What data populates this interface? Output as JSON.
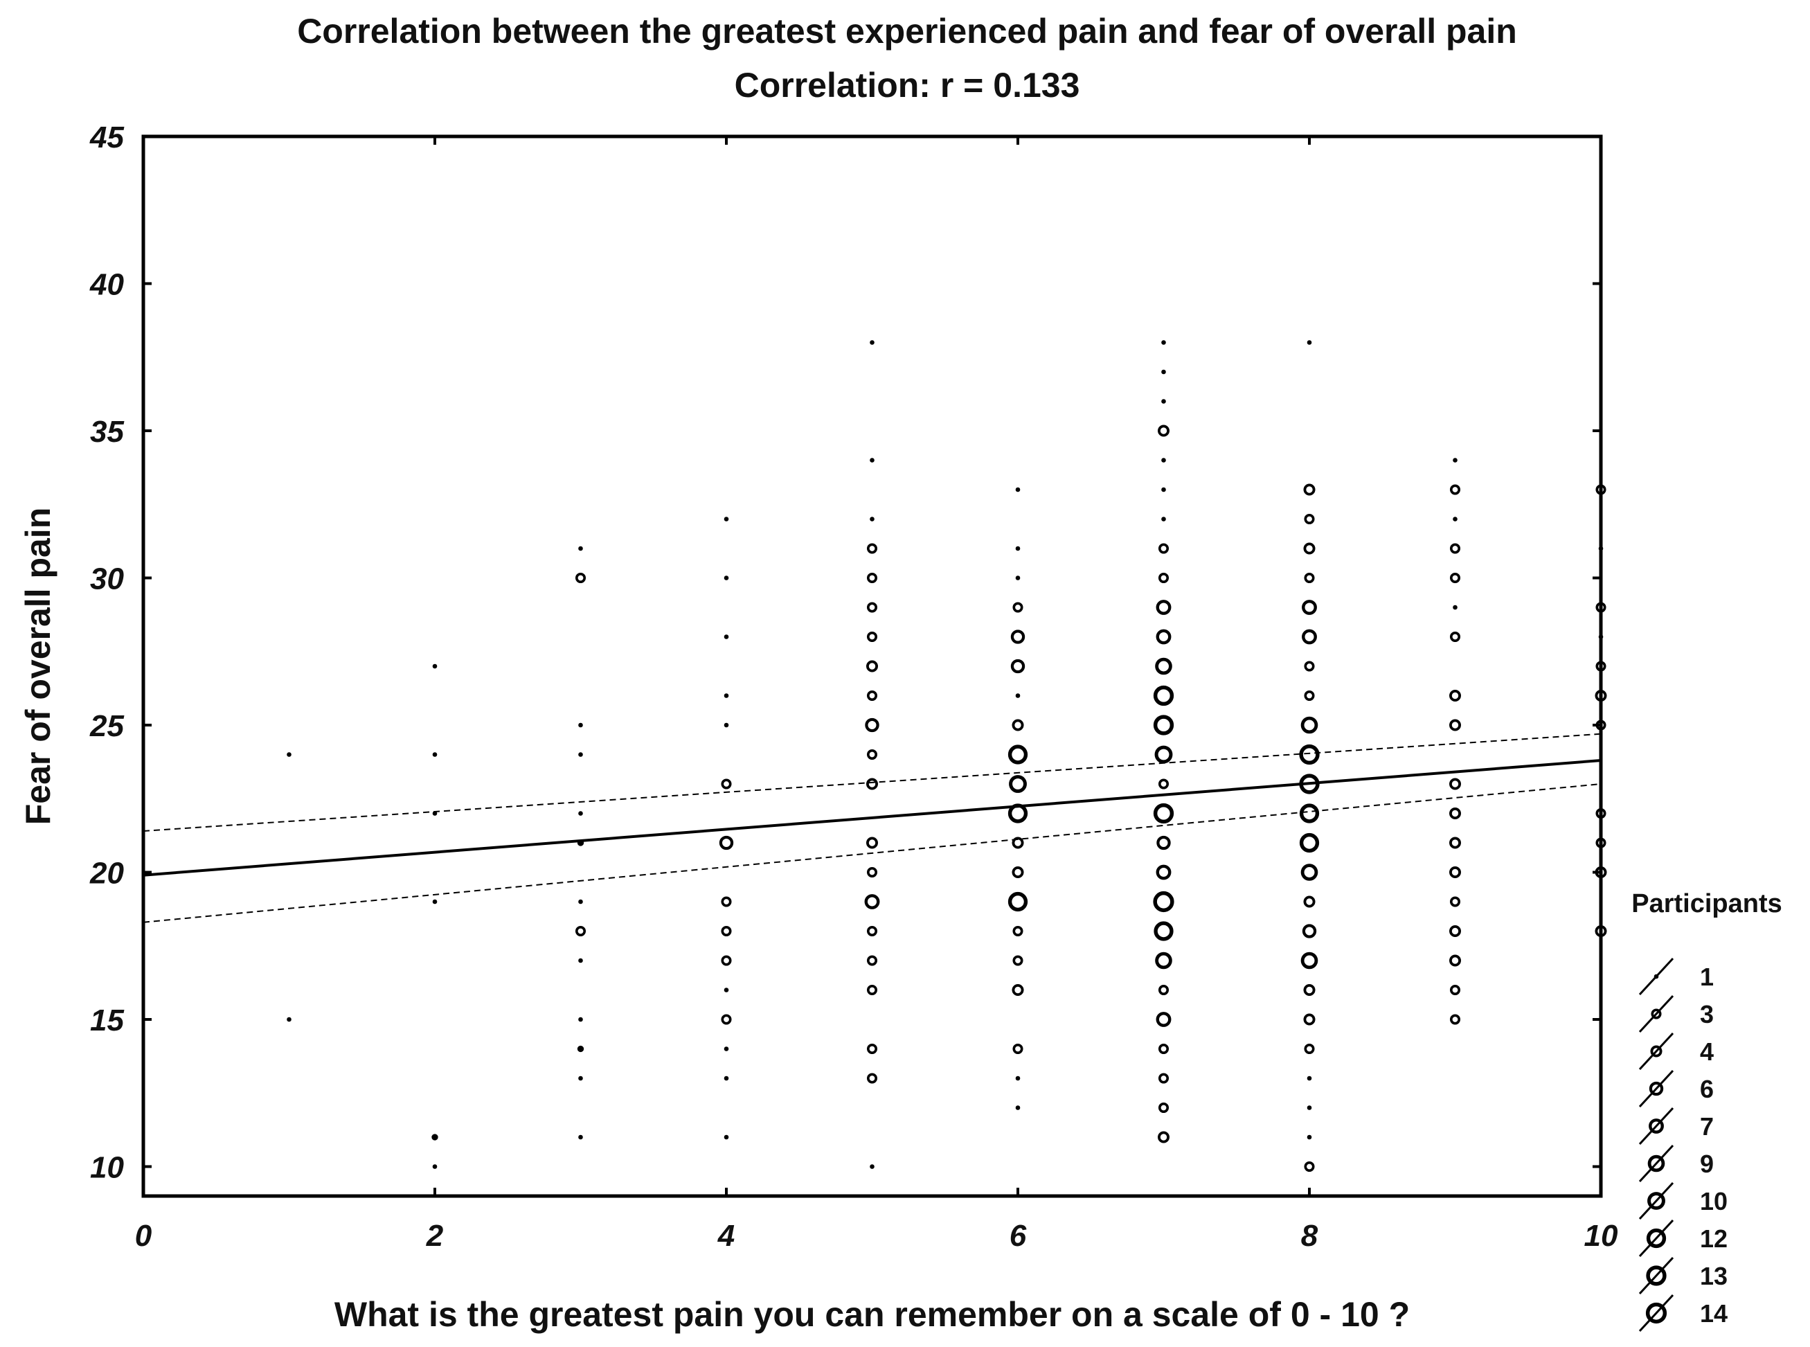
{
  "chart_data": {
    "type": "scatter",
    "title": "Correlation between the greatest experienced pain and fear of overall pain",
    "subtitle": "Correlation: r =  0.133",
    "xlabel": "What is the greatest pain you can remember on a scale of 0 - 10 ?",
    "ylabel": "Fear of overall pain",
    "xlim": [
      0,
      10
    ],
    "ylim": [
      9,
      45
    ],
    "x_ticks": [
      0,
      2,
      4,
      6,
      8,
      10
    ],
    "y_ticks": [
      10,
      15,
      20,
      25,
      30,
      35,
      40,
      45
    ],
    "x_tick_labels": [
      "0",
      "2",
      "4",
      "6",
      "8",
      "10"
    ],
    "y_tick_labels": [
      "10",
      "15",
      "20",
      "25",
      "30",
      "35",
      "40",
      "45"
    ],
    "grid": false,
    "legend": {
      "title": "Participants",
      "placement": "right",
      "entries": [
        1,
        3,
        4,
        6,
        7,
        9,
        10,
        12,
        13,
        14
      ],
      "labels": [
        "1",
        "3",
        "4",
        "6",
        "7",
        "9",
        "10",
        "12",
        "13",
        "14"
      ]
    },
    "regression": {
      "intercept": 19.9,
      "slope": 0.39
    },
    "confidence_band": {
      "upper": [
        [
          0,
          21.4
        ],
        [
          10,
          24.7
        ]
      ],
      "lower": [
        [
          0,
          18.3
        ],
        [
          10,
          23.0
        ]
      ]
    },
    "points": [
      {
        "x": 1,
        "y": 24,
        "n": 1
      },
      {
        "x": 1,
        "y": 15,
        "n": 1
      },
      {
        "x": 2,
        "y": 27,
        "n": 1
      },
      {
        "x": 2,
        "y": 24,
        "n": 1
      },
      {
        "x": 2,
        "y": 22,
        "n": 1
      },
      {
        "x": 2,
        "y": 19,
        "n": 1
      },
      {
        "x": 2,
        "y": 11,
        "n": 2
      },
      {
        "x": 2,
        "y": 10,
        "n": 1
      },
      {
        "x": 3,
        "y": 31,
        "n": 1
      },
      {
        "x": 3,
        "y": 30,
        "n": 3
      },
      {
        "x": 3,
        "y": 25,
        "n": 1
      },
      {
        "x": 3,
        "y": 24,
        "n": 1
      },
      {
        "x": 3,
        "y": 22,
        "n": 1
      },
      {
        "x": 3,
        "y": 21,
        "n": 2
      },
      {
        "x": 3,
        "y": 19,
        "n": 1
      },
      {
        "x": 3,
        "y": 18,
        "n": 3
      },
      {
        "x": 3,
        "y": 17,
        "n": 1
      },
      {
        "x": 3,
        "y": 15,
        "n": 1
      },
      {
        "x": 3,
        "y": 14,
        "n": 2
      },
      {
        "x": 3,
        "y": 13,
        "n": 1
      },
      {
        "x": 3,
        "y": 11,
        "n": 1
      },
      {
        "x": 4,
        "y": 32,
        "n": 1
      },
      {
        "x": 4,
        "y": 30,
        "n": 1
      },
      {
        "x": 4,
        "y": 28,
        "n": 1
      },
      {
        "x": 4,
        "y": 26,
        "n": 1
      },
      {
        "x": 4,
        "y": 25,
        "n": 1
      },
      {
        "x": 4,
        "y": 23,
        "n": 3
      },
      {
        "x": 4,
        "y": 21,
        "n": 6
      },
      {
        "x": 4,
        "y": 19,
        "n": 3
      },
      {
        "x": 4,
        "y": 18,
        "n": 3
      },
      {
        "x": 4,
        "y": 17,
        "n": 3
      },
      {
        "x": 4,
        "y": 16,
        "n": 1
      },
      {
        "x": 4,
        "y": 15,
        "n": 3
      },
      {
        "x": 4,
        "y": 14,
        "n": 1
      },
      {
        "x": 4,
        "y": 13,
        "n": 1
      },
      {
        "x": 4,
        "y": 11,
        "n": 1
      },
      {
        "x": 5,
        "y": 38,
        "n": 1
      },
      {
        "x": 5,
        "y": 34,
        "n": 1
      },
      {
        "x": 5,
        "y": 32,
        "n": 1
      },
      {
        "x": 5,
        "y": 31,
        "n": 3
      },
      {
        "x": 5,
        "y": 30,
        "n": 3
      },
      {
        "x": 5,
        "y": 29,
        "n": 3
      },
      {
        "x": 5,
        "y": 28,
        "n": 3
      },
      {
        "x": 5,
        "y": 27,
        "n": 4
      },
      {
        "x": 5,
        "y": 26,
        "n": 3
      },
      {
        "x": 5,
        "y": 25,
        "n": 6
      },
      {
        "x": 5,
        "y": 24,
        "n": 3
      },
      {
        "x": 5,
        "y": 23,
        "n": 4
      },
      {
        "x": 5,
        "y": 21,
        "n": 4
      },
      {
        "x": 5,
        "y": 20,
        "n": 3
      },
      {
        "x": 5,
        "y": 19,
        "n": 7
      },
      {
        "x": 5,
        "y": 18,
        "n": 3
      },
      {
        "x": 5,
        "y": 17,
        "n": 3
      },
      {
        "x": 5,
        "y": 16,
        "n": 3
      },
      {
        "x": 5,
        "y": 14,
        "n": 3
      },
      {
        "x": 5,
        "y": 13,
        "n": 3
      },
      {
        "x": 5,
        "y": 10,
        "n": 1
      },
      {
        "x": 6,
        "y": 33,
        "n": 1
      },
      {
        "x": 6,
        "y": 31,
        "n": 1
      },
      {
        "x": 6,
        "y": 30,
        "n": 1
      },
      {
        "x": 6,
        "y": 29,
        "n": 3
      },
      {
        "x": 6,
        "y": 28,
        "n": 6
      },
      {
        "x": 6,
        "y": 27,
        "n": 6
      },
      {
        "x": 6,
        "y": 26,
        "n": 1
      },
      {
        "x": 6,
        "y": 25,
        "n": 4
      },
      {
        "x": 6,
        "y": 24,
        "n": 12
      },
      {
        "x": 6,
        "y": 23,
        "n": 10
      },
      {
        "x": 6,
        "y": 22,
        "n": 12
      },
      {
        "x": 6,
        "y": 21,
        "n": 4
      },
      {
        "x": 6,
        "y": 20,
        "n": 4
      },
      {
        "x": 6,
        "y": 19,
        "n": 12
      },
      {
        "x": 6,
        "y": 18,
        "n": 3
      },
      {
        "x": 6,
        "y": 17,
        "n": 3
      },
      {
        "x": 6,
        "y": 16,
        "n": 4
      },
      {
        "x": 6,
        "y": 14,
        "n": 3
      },
      {
        "x": 6,
        "y": 13,
        "n": 1
      },
      {
        "x": 6,
        "y": 12,
        "n": 1
      },
      {
        "x": 7,
        "y": 38,
        "n": 1
      },
      {
        "x": 7,
        "y": 37,
        "n": 1
      },
      {
        "x": 7,
        "y": 36,
        "n": 1
      },
      {
        "x": 7,
        "y": 35,
        "n": 4
      },
      {
        "x": 7,
        "y": 34,
        "n": 1
      },
      {
        "x": 7,
        "y": 33,
        "n": 1
      },
      {
        "x": 7,
        "y": 32,
        "n": 1
      },
      {
        "x": 7,
        "y": 31,
        "n": 3
      },
      {
        "x": 7,
        "y": 30,
        "n": 3
      },
      {
        "x": 7,
        "y": 29,
        "n": 7
      },
      {
        "x": 7,
        "y": 28,
        "n": 7
      },
      {
        "x": 7,
        "y": 27,
        "n": 9
      },
      {
        "x": 7,
        "y": 26,
        "n": 13
      },
      {
        "x": 7,
        "y": 25,
        "n": 13
      },
      {
        "x": 7,
        "y": 24,
        "n": 10
      },
      {
        "x": 7,
        "y": 23,
        "n": 3
      },
      {
        "x": 7,
        "y": 22,
        "n": 13
      },
      {
        "x": 7,
        "y": 21,
        "n": 6
      },
      {
        "x": 7,
        "y": 20,
        "n": 7
      },
      {
        "x": 7,
        "y": 19,
        "n": 14
      },
      {
        "x": 7,
        "y": 18,
        "n": 12
      },
      {
        "x": 7,
        "y": 17,
        "n": 9
      },
      {
        "x": 7,
        "y": 16,
        "n": 3
      },
      {
        "x": 7,
        "y": 15,
        "n": 7
      },
      {
        "x": 7,
        "y": 14,
        "n": 3
      },
      {
        "x": 7,
        "y": 13,
        "n": 3
      },
      {
        "x": 7,
        "y": 12,
        "n": 3
      },
      {
        "x": 7,
        "y": 11,
        "n": 4
      },
      {
        "x": 8,
        "y": 38,
        "n": 1
      },
      {
        "x": 8,
        "y": 33,
        "n": 4
      },
      {
        "x": 8,
        "y": 32,
        "n": 3
      },
      {
        "x": 8,
        "y": 31,
        "n": 4
      },
      {
        "x": 8,
        "y": 30,
        "n": 3
      },
      {
        "x": 8,
        "y": 29,
        "n": 7
      },
      {
        "x": 8,
        "y": 28,
        "n": 7
      },
      {
        "x": 8,
        "y": 27,
        "n": 3
      },
      {
        "x": 8,
        "y": 26,
        "n": 3
      },
      {
        "x": 8,
        "y": 25,
        "n": 9
      },
      {
        "x": 8,
        "y": 24,
        "n": 13
      },
      {
        "x": 8,
        "y": 23,
        "n": 13
      },
      {
        "x": 8,
        "y": 22,
        "n": 12
      },
      {
        "x": 8,
        "y": 21,
        "n": 12
      },
      {
        "x": 8,
        "y": 20,
        "n": 9
      },
      {
        "x": 8,
        "y": 19,
        "n": 4
      },
      {
        "x": 8,
        "y": 18,
        "n": 6
      },
      {
        "x": 8,
        "y": 17,
        "n": 9
      },
      {
        "x": 8,
        "y": 16,
        "n": 4
      },
      {
        "x": 8,
        "y": 15,
        "n": 4
      },
      {
        "x": 8,
        "y": 14,
        "n": 3
      },
      {
        "x": 8,
        "y": 13,
        "n": 1
      },
      {
        "x": 8,
        "y": 12,
        "n": 1
      },
      {
        "x": 8,
        "y": 11,
        "n": 1
      },
      {
        "x": 8,
        "y": 10,
        "n": 3
      },
      {
        "x": 9,
        "y": 34,
        "n": 1
      },
      {
        "x": 9,
        "y": 33,
        "n": 3
      },
      {
        "x": 9,
        "y": 32,
        "n": 1
      },
      {
        "x": 9,
        "y": 31,
        "n": 3
      },
      {
        "x": 9,
        "y": 30,
        "n": 3
      },
      {
        "x": 9,
        "y": 29,
        "n": 1
      },
      {
        "x": 9,
        "y": 28,
        "n": 3
      },
      {
        "x": 9,
        "y": 26,
        "n": 4
      },
      {
        "x": 9,
        "y": 25,
        "n": 4
      },
      {
        "x": 9,
        "y": 23,
        "n": 4
      },
      {
        "x": 9,
        "y": 22,
        "n": 4
      },
      {
        "x": 9,
        "y": 21,
        "n": 4
      },
      {
        "x": 9,
        "y": 20,
        "n": 4
      },
      {
        "x": 9,
        "y": 19,
        "n": 3
      },
      {
        "x": 9,
        "y": 18,
        "n": 4
      },
      {
        "x": 9,
        "y": 17,
        "n": 4
      },
      {
        "x": 9,
        "y": 16,
        "n": 3
      },
      {
        "x": 9,
        "y": 15,
        "n": 3
      },
      {
        "x": 10,
        "y": 33,
        "n": 3
      },
      {
        "x": 10,
        "y": 31,
        "n": 1
      },
      {
        "x": 10,
        "y": 29,
        "n": 3
      },
      {
        "x": 10,
        "y": 28,
        "n": 1
      },
      {
        "x": 10,
        "y": 27,
        "n": 3
      },
      {
        "x": 10,
        "y": 26,
        "n": 4
      },
      {
        "x": 10,
        "y": 25,
        "n": 3
      },
      {
        "x": 10,
        "y": 22,
        "n": 3
      },
      {
        "x": 10,
        "y": 21,
        "n": 3
      },
      {
        "x": 10,
        "y": 20,
        "n": 4
      },
      {
        "x": 10,
        "y": 18,
        "n": 4
      }
    ]
  }
}
